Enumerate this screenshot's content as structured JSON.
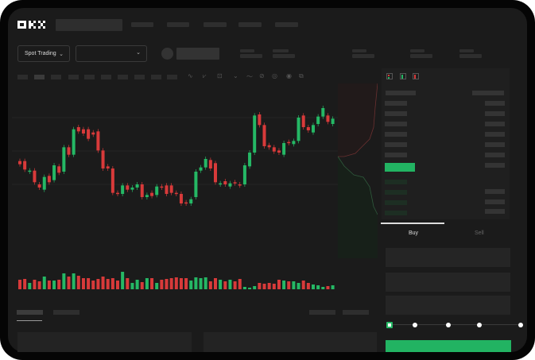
{
  "brand": {
    "logo": "OKX"
  },
  "toolbar": {
    "market_type": "Spot Trading",
    "pair_select": ""
  },
  "trade": {
    "tabs": [
      "Buy",
      "Sell"
    ],
    "active_tab": "Buy",
    "leverage_slider_value": 0,
    "slider_stops": 5
  },
  "colors": {
    "up": "#25b865",
    "down": "#d83a3a",
    "background": "#1b1b1b",
    "accent": "#27b866"
  },
  "icons": [
    "okx-logo",
    "chevron-down-icon",
    "avatar-circle",
    "order-book-both-icon",
    "order-book-buy-icon",
    "order-book-sell-icon",
    "indicator-icon",
    "line-tool-icon",
    "ruler-icon",
    "settings-icon",
    "fullscreen-icon"
  ],
  "chart_data": {
    "type": "candlestick",
    "title": "",
    "xlabel": "",
    "ylabel": "",
    "grid": true,
    "candles": [
      [
        48,
        45
      ],
      [
        48,
        40
      ],
      [
        38,
        39
      ],
      [
        39,
        28
      ],
      [
        26,
        23
      ],
      [
        21,
        33
      ],
      [
        34,
        28
      ],
      [
        30,
        44
      ],
      [
        43,
        37
      ],
      [
        38,
        61
      ],
      [
        61,
        54
      ],
      [
        54,
        78
      ],
      [
        80,
        76
      ],
      [
        78,
        74
      ],
      [
        78,
        69
      ],
      [
        75,
        73
      ],
      [
        76,
        58
      ],
      [
        58,
        41
      ],
      [
        43,
        41
      ],
      [
        41,
        18
      ],
      [
        18,
        17
      ],
      [
        17,
        25
      ],
      [
        25,
        21
      ],
      [
        21,
        23
      ],
      [
        23,
        26
      ],
      [
        26,
        14
      ],
      [
        14,
        16
      ],
      [
        18,
        15
      ],
      [
        16,
        24
      ],
      [
        24,
        23
      ],
      [
        25,
        17
      ],
      [
        25,
        18
      ],
      [
        18,
        17
      ],
      [
        17,
        8
      ],
      [
        9,
        8
      ],
      [
        8,
        12
      ],
      [
        14,
        38
      ],
      [
        39,
        42
      ],
      [
        42,
        50
      ],
      [
        49,
        41
      ],
      [
        46,
        28
      ],
      [
        26,
        27
      ],
      [
        29,
        26
      ],
      [
        24,
        27
      ],
      [
        28,
        27
      ],
      [
        26,
        25
      ],
      [
        26,
        44
      ],
      [
        43,
        56
      ],
      [
        56,
        91
      ],
      [
        92,
        82
      ],
      [
        82,
        62
      ],
      [
        63,
        61
      ],
      [
        61,
        57
      ],
      [
        58,
        56
      ],
      [
        54,
        65
      ],
      [
        66,
        65
      ],
      [
        64,
        67
      ],
      [
        67,
        89
      ],
      [
        91,
        80
      ],
      [
        80,
        77
      ],
      [
        75,
        82
      ],
      [
        83,
        90
      ],
      [
        90,
        98
      ],
      [
        91,
        85
      ],
      [
        83,
        88
      ]
    ],
    "volume": [
      12,
      13,
      8,
      12,
      10,
      16,
      11,
      11,
      12,
      20,
      16,
      20,
      17,
      14,
      14,
      11,
      13,
      16,
      13,
      14,
      11,
      22,
      14,
      8,
      12,
      9,
      14,
      14,
      8,
      12,
      13,
      14,
      15,
      14,
      14,
      11,
      15,
      14,
      15,
      10,
      14,
      12,
      10,
      12,
      10,
      13,
      3,
      2,
      4,
      8,
      7,
      8,
      7,
      12,
      11,
      10,
      10,
      8,
      11,
      8,
      6,
      5,
      3,
      4,
      5
    ]
  }
}
